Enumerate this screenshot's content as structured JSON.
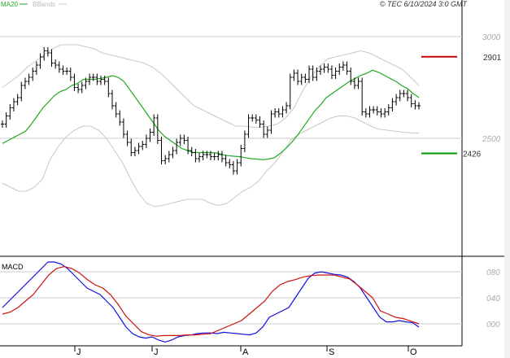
{
  "header": {
    "legend_ma": "MA20",
    "legend_bb": "BBands",
    "copyright": "© TEC 6/10/2024 3:0 GMT"
  },
  "colors": {
    "ma": "#22aa22",
    "bands": "#c8c8c8",
    "price": "#000000",
    "macd": "#1111dd",
    "signal": "#cc1111",
    "resistance": "#cc0000",
    "support": "#009900",
    "grid": "#cccccc"
  },
  "chart_data": [
    {
      "type": "line",
      "title": "",
      "y_ticks": [
        "3000",
        "2500"
      ],
      "x_month_labels": [
        "J",
        "J",
        "A",
        "S",
        "O"
      ],
      "levels": [
        {
          "name": "resistance",
          "value": 2901,
          "label": "2901"
        },
        {
          "name": "support",
          "value": 2426,
          "label": "2426"
        }
      ],
      "ylim": [
        1980,
        3100
      ],
      "series": [
        {
          "name": "price",
          "values": [
            2570,
            2610,
            2650,
            2680,
            2700,
            2760,
            2780,
            2800,
            2830,
            2860,
            2900,
            2930,
            2920,
            2870,
            2860,
            2840,
            2830,
            2830,
            2800,
            2750,
            2740,
            2760,
            2780,
            2800,
            2800,
            2780,
            2790,
            2780,
            2720,
            2660,
            2620,
            2580,
            2520,
            2480,
            2430,
            2440,
            2460,
            2470,
            2500,
            2530,
            2600,
            2490,
            2390,
            2400,
            2420,
            2440,
            2480,
            2500,
            2490,
            2440,
            2430,
            2400,
            2410,
            2420,
            2420,
            2410,
            2410,
            2420,
            2400,
            2380,
            2370,
            2340,
            2380,
            2450,
            2520,
            2600,
            2600,
            2590,
            2570,
            2520,
            2540,
            2620,
            2630,
            2620,
            2640,
            2660,
            2800,
            2820,
            2780,
            2800,
            2790,
            2840,
            2800,
            2830,
            2840,
            2850,
            2840,
            2810,
            2830,
            2850,
            2860,
            2830,
            2780,
            2760,
            2780,
            2630,
            2620,
            2640,
            2640,
            2630,
            2620,
            2630,
            2650,
            2680,
            2700,
            2720,
            2720,
            2700,
            2670,
            2660,
            2660
          ]
        },
        {
          "name": "ma",
          "values": [
            2475,
            2490,
            2505,
            2520,
            2535,
            2570,
            2610,
            2650,
            2680,
            2710,
            2730,
            2740,
            2760,
            2770,
            2790,
            2790,
            2790,
            2795,
            2800,
            2808,
            2800,
            2780,
            2740,
            2700,
            2660,
            2620,
            2580,
            2540,
            2510,
            2490,
            2470,
            2450,
            2440,
            2430,
            2430,
            2430,
            2430,
            2428,
            2420,
            2415,
            2412,
            2410,
            2405,
            2400,
            2398,
            2395,
            2398,
            2405,
            2425,
            2450,
            2480,
            2515,
            2555,
            2595,
            2635,
            2665,
            2700,
            2720,
            2740,
            2760,
            2780,
            2795,
            2810,
            2820,
            2835,
            2825,
            2810,
            2795,
            2780,
            2760,
            2745,
            2720,
            2700
          ]
        },
        {
          "name": "upper_band",
          "values": [
            2750,
            2780,
            2810,
            2850,
            2880,
            2910,
            2940,
            2960,
            2960,
            2960,
            2950,
            2940,
            2920,
            2910,
            2900,
            2890,
            2880,
            2870,
            2850,
            2820,
            2780,
            2740,
            2700,
            2660,
            2640,
            2620,
            2600,
            2580,
            2560,
            2560,
            2555,
            2555,
            2560,
            2570,
            2600,
            2650,
            2730,
            2800,
            2850,
            2890,
            2900,
            2910,
            2920,
            2930,
            2920,
            2900,
            2880,
            2860,
            2840,
            2800,
            2760
          ]
        },
        {
          "name": "lower_band",
          "values": [
            2280,
            2260,
            2240,
            2240,
            2260,
            2300,
            2400,
            2460,
            2510,
            2540,
            2560,
            2560,
            2540,
            2500,
            2440,
            2380,
            2300,
            2230,
            2180,
            2165,
            2170,
            2180,
            2190,
            2200,
            2200,
            2200,
            2180,
            2170,
            2180,
            2210,
            2240,
            2260,
            2290,
            2340,
            2380,
            2430,
            2490,
            2520,
            2540,
            2560,
            2580,
            2600,
            2610,
            2610,
            2600,
            2580,
            2560,
            2545,
            2540,
            2535,
            2530,
            2527,
            2525
          ]
        }
      ]
    },
    {
      "type": "line",
      "title": "MACD",
      "y_ticks": [
        "080",
        "040",
        "000"
      ],
      "ylim": [
        -30,
        100
      ],
      "series": [
        {
          "name": "macd",
          "values": [
            25,
            35,
            45,
            55,
            65,
            75,
            85,
            95,
            95,
            92,
            85,
            75,
            65,
            55,
            50,
            45,
            35,
            25,
            10,
            -5,
            -15,
            -20,
            -22,
            -20,
            -25,
            -28,
            -25,
            -20,
            -18,
            -17,
            -15,
            -14,
            -14,
            -15,
            -13,
            -14,
            -15,
            -16,
            -17,
            -14,
            -5,
            10,
            15,
            20,
            25,
            40,
            55,
            70,
            78,
            80,
            78,
            76,
            75,
            72,
            65,
            55,
            40,
            25,
            10,
            3,
            3,
            5,
            3,
            2,
            -5
          ]
        },
        {
          "name": "signal",
          "values": [
            15,
            18,
            25,
            35,
            45,
            60,
            75,
            85,
            88,
            85,
            78,
            68,
            60,
            55,
            45,
            30,
            12,
            0,
            -12,
            -17,
            -19,
            -18,
            -18,
            -18,
            -17,
            -17,
            -16,
            -15,
            -10,
            -5,
            0,
            5,
            15,
            25,
            35,
            50,
            60,
            65,
            68,
            72,
            74,
            75,
            75,
            75,
            72,
            69,
            60,
            50,
            40,
            20,
            15,
            10,
            8,
            4,
            0
          ]
        }
      ]
    }
  ]
}
